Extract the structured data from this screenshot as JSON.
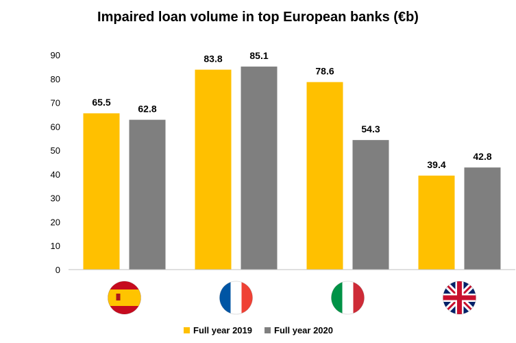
{
  "colors": {
    "series_2019": "#FFC000",
    "series_2020": "#7F7F7F",
    "axis": "#BFBFBF",
    "text": "#000000"
  },
  "chart_data": {
    "type": "bar",
    "title": "Impaired loan volume in top European banks (€b)",
    "categories": [
      "Spain",
      "France",
      "Italy",
      "United Kingdom"
    ],
    "category_icons": [
      "spain-flag-icon",
      "france-flag-icon",
      "italy-flag-icon",
      "uk-flag-icon"
    ],
    "series": [
      {
        "name": "Full year 2019",
        "color": "#FFC000",
        "values": [
          65.5,
          83.8,
          78.6,
          39.4
        ]
      },
      {
        "name": "Full year 2020",
        "color": "#7F7F7F",
        "values": [
          62.8,
          85.1,
          54.3,
          42.8
        ]
      }
    ],
    "ylim": [
      0,
      90
    ],
    "yticks": [
      0,
      10,
      20,
      30,
      40,
      50,
      60,
      70,
      80,
      90
    ],
    "grid": false,
    "legend_position": "bottom",
    "data_labels": true
  }
}
